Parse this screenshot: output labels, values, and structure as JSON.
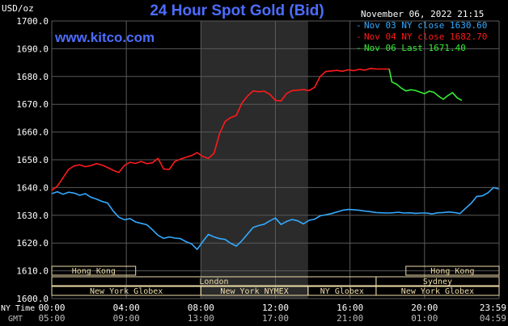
{
  "title": "24 Hour Spot Gold (Bid)",
  "website": "www.kitco.com",
  "timestamp": "November 06, 2022 21:15",
  "colors": {
    "background": "#000000",
    "grid": "#5a5a5a",
    "text": "#ffffff",
    "title": "#4d6dff",
    "website": "#4d6dff",
    "nov03": "#33aaff",
    "nov04": "#ff1a1a",
    "nov06": "#33ee33",
    "session_shade": "#2b2b2b",
    "session_box_fill": "#eedcaa",
    "session_box_text": "#333333",
    "axis_muted": "#bbbbbb"
  },
  "chart_data": {
    "type": "line",
    "title": "24 Hour Spot Gold (Bid)",
    "ylabel": "USD/oz",
    "ylim": [
      1600.0,
      1700.0
    ],
    "yticks": [
      1600.0,
      1610.0,
      1620.0,
      1630.0,
      1640.0,
      1650.0,
      1660.0,
      1670.0,
      1680.0,
      1690.0,
      1700.0
    ],
    "ytick_labels": [
      "1600.0",
      "1610.0",
      "1620.0",
      "1630.0",
      "1640.0",
      "1650.0",
      "1660.0",
      "1670.0",
      "1680.0",
      "1690.0",
      "1700.0"
    ],
    "xlim": [
      0,
      24
    ],
    "xticks": [
      0,
      4,
      8,
      12,
      16,
      20,
      24
    ],
    "ny_time_title": "NY Time",
    "gmt_title": "GMT",
    "ny_time_labels": [
      "00:00",
      "04:00",
      "08:00",
      "12:00",
      "16:00",
      "20:00",
      "23:59"
    ],
    "gmt_labels": [
      "05:00",
      "09:00",
      "13:00",
      "17:00",
      "21:00",
      "01:00",
      "04:59"
    ],
    "legend": [
      {
        "label": "Nov 03 NY close 1630.60",
        "color": "#33aaff"
      },
      {
        "label": "Nov 04 NY close 1682.70",
        "color": "#ff1a1a"
      },
      {
        "label": "Nov 06 Last 1671.40",
        "color": "#33ee33"
      }
    ],
    "highlight_session": [
      8.0,
      13.75
    ],
    "sessions": [
      {
        "label": "Hong Kong",
        "start": 0,
        "end": 4.5,
        "row": 0
      },
      {
        "label": "Hong Kong",
        "start": 19.0,
        "end": 24,
        "row": 0
      },
      {
        "label": "London",
        "start": 0,
        "end": 17.4,
        "row": 1
      },
      {
        "label": "Sydney",
        "start": 17.4,
        "end": 24,
        "row": 1
      },
      {
        "label": "New York Globex",
        "start": 0,
        "end": 8.0,
        "row": 2
      },
      {
        "label": "New York NYMEX",
        "start": 8.0,
        "end": 13.75,
        "row": 2
      },
      {
        "label": "NY Globex",
        "start": 13.75,
        "end": 17.4,
        "row": 2
      },
      {
        "label": "New York Globex",
        "start": 17.4,
        "end": 24,
        "row": 2
      }
    ],
    "series": [
      {
        "name": "Nov 03",
        "color": "#33aaff",
        "x": [
          0,
          0.3,
          0.6,
          0.9,
          1.2,
          1.5,
          1.8,
          2.1,
          2.4,
          2.7,
          3.0,
          3.3,
          3.6,
          3.9,
          4.2,
          4.5,
          4.8,
          5.1,
          5.4,
          5.7,
          6.0,
          6.3,
          6.6,
          6.9,
          7.2,
          7.5,
          7.8,
          8.1,
          8.4,
          8.7,
          9.0,
          9.3,
          9.6,
          9.9,
          10.2,
          10.5,
          10.8,
          11.1,
          11.4,
          11.7,
          12.0,
          12.3,
          12.6,
          12.9,
          13.2,
          13.5,
          13.8,
          14.1,
          14.4,
          14.7,
          15.0,
          15.3,
          15.6,
          15.9,
          16.2,
          16.5,
          16.8,
          17.1,
          17.4,
          17.7,
          18.0,
          18.3,
          18.6,
          18.9,
          19.2,
          19.5,
          19.8,
          20.1,
          20.4,
          20.7,
          21.0,
          21.3,
          21.6,
          21.9,
          22.2,
          22.5,
          22.8,
          23.1,
          23.4,
          23.7,
          23.98
        ],
        "y": [
          1637.8,
          1638.5,
          1637.6,
          1638.3,
          1638.0,
          1637.2,
          1637.8,
          1636.5,
          1635.8,
          1635.0,
          1634.4,
          1631.5,
          1629.3,
          1628.4,
          1628.8,
          1627.6,
          1627.1,
          1626.6,
          1624.8,
          1622.8,
          1621.7,
          1622.2,
          1621.8,
          1621.6,
          1620.5,
          1619.7,
          1617.7,
          1620.5,
          1623.1,
          1622.2,
          1621.6,
          1621.3,
          1619.9,
          1618.9,
          1620.8,
          1623.2,
          1625.6,
          1626.3,
          1626.8,
          1628.0,
          1629.0,
          1626.7,
          1627.8,
          1628.5,
          1628.0,
          1626.9,
          1628.2,
          1628.6,
          1629.8,
          1630.2,
          1630.6,
          1631.2,
          1631.8,
          1632.1,
          1632.0,
          1631.8,
          1631.5,
          1631.3,
          1631.0,
          1630.9,
          1630.8,
          1630.9,
          1631.1,
          1630.8,
          1630.9,
          1630.7,
          1630.8,
          1630.8,
          1630.5,
          1630.9,
          1631.0,
          1631.2,
          1631.0,
          1630.6,
          1632.5,
          1634.3,
          1636.8,
          1637.0,
          1638.1,
          1640.0,
          1639.5
        ]
      },
      {
        "name": "Nov 04",
        "color": "#ff1a1a",
        "x": [
          0,
          0.3,
          0.6,
          0.9,
          1.2,
          1.5,
          1.8,
          2.1,
          2.4,
          2.7,
          3.0,
          3.3,
          3.6,
          3.9,
          4.2,
          4.5,
          4.8,
          5.1,
          5.4,
          5.7,
          6.0,
          6.3,
          6.6,
          6.9,
          7.2,
          7.5,
          7.8,
          8.1,
          8.4,
          8.7,
          9.0,
          9.3,
          9.6,
          9.9,
          10.2,
          10.5,
          10.8,
          11.1,
          11.4,
          11.7,
          12.0,
          12.3,
          12.6,
          12.9,
          13.2,
          13.5,
          13.8,
          14.1,
          14.4,
          14.7,
          15.0,
          15.3,
          15.6,
          15.9,
          16.2,
          16.5,
          16.8,
          17.1,
          17.4,
          17.7,
          18.1
        ],
        "y": [
          1639.0,
          1640.5,
          1643.5,
          1646.5,
          1647.8,
          1648.2,
          1647.5,
          1647.9,
          1648.6,
          1648.1,
          1647.2,
          1646.2,
          1645.4,
          1648.0,
          1649.1,
          1648.7,
          1649.4,
          1648.6,
          1648.9,
          1650.5,
          1646.7,
          1646.5,
          1649.4,
          1650.2,
          1650.9,
          1651.5,
          1652.6,
          1651.2,
          1650.5,
          1652.3,
          1659.4,
          1663.8,
          1665.2,
          1666.0,
          1670.4,
          1672.9,
          1674.8,
          1674.5,
          1674.7,
          1673.6,
          1671.4,
          1671.2,
          1673.9,
          1674.9,
          1675.1,
          1675.3,
          1674.9,
          1676.1,
          1680.0,
          1681.8,
          1682.0,
          1682.2,
          1681.9,
          1682.4,
          1682.1,
          1682.6,
          1682.3,
          1682.9,
          1682.7,
          1682.7,
          1682.7
        ]
      },
      {
        "name": "Nov 06",
        "color": "#33ee33",
        "x": [
          18.1,
          18.25,
          18.5,
          18.75,
          19.0,
          19.25,
          19.5,
          19.75,
          20.0,
          20.25,
          20.5,
          20.75,
          21.0,
          21.25,
          21.5,
          21.75,
          22.0
        ],
        "y": [
          1682.7,
          1678.0,
          1677.2,
          1675.8,
          1674.8,
          1675.2,
          1675.0,
          1674.4,
          1673.8,
          1674.7,
          1674.3,
          1672.9,
          1671.8,
          1673.1,
          1674.2,
          1672.3,
          1671.4
        ]
      }
    ]
  }
}
